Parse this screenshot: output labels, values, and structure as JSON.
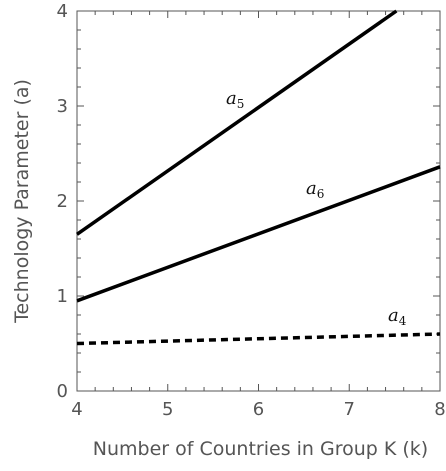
{
  "chart_data": {
    "type": "line",
    "xlabel": "Number of Countries in Group K (k)",
    "ylabel": "Technology Parameter (a)",
    "xlim": [
      4,
      8
    ],
    "ylim": [
      0,
      4
    ],
    "xticks": [
      "4",
      "5",
      "6",
      "7",
      "8"
    ],
    "yticks": [
      "0",
      "1",
      "2",
      "3",
      "4"
    ],
    "grid": false,
    "series": [
      {
        "name": "a5",
        "label_main": "a",
        "label_sub": "5",
        "line_style": "solid",
        "x": [
          4,
          7.52
        ],
        "y": [
          1.65,
          4.0
        ]
      },
      {
        "name": "a6",
        "label_main": "a",
        "label_sub": "6",
        "line_style": "solid",
        "x": [
          4,
          8
        ],
        "y": [
          0.95,
          2.36
        ]
      },
      {
        "name": "a4",
        "label_main": "a",
        "label_sub": "4",
        "line_style": "dashed",
        "x": [
          4,
          8
        ],
        "y": [
          0.5,
          0.6
        ]
      }
    ],
    "colors": {
      "line": "#000000",
      "axis": "#555555"
    }
  }
}
